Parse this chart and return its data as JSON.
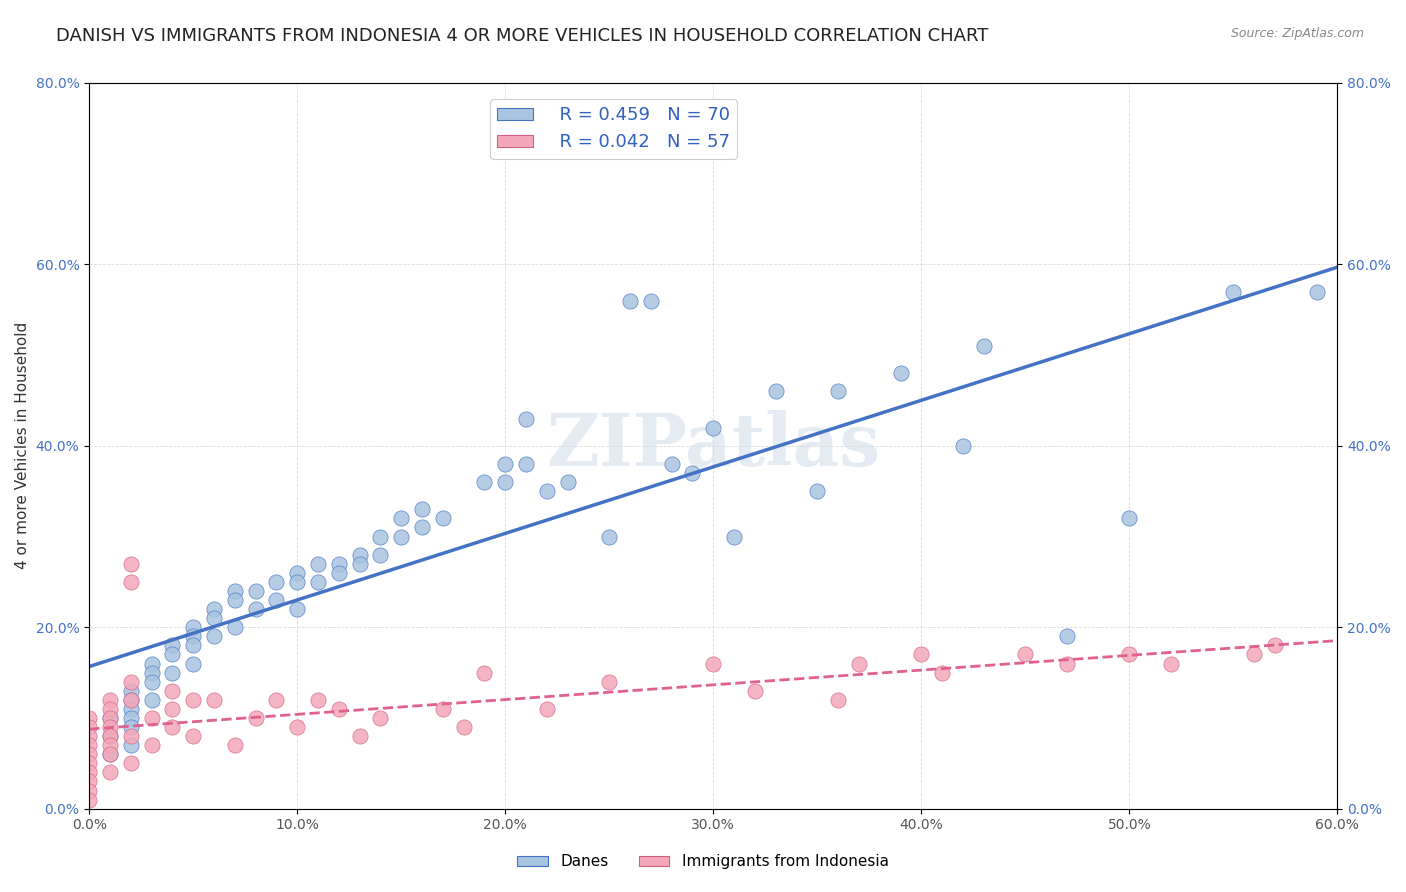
{
  "title": "DANISH VS IMMIGRANTS FROM INDONESIA 4 OR MORE VEHICLES IN HOUSEHOLD CORRELATION CHART",
  "source": "Source: ZipAtlas.com",
  "xlabel": "",
  "ylabel": "4 or more Vehicles in Household",
  "xlim": [
    0.0,
    0.6
  ],
  "ylim": [
    0.0,
    0.8
  ],
  "xticks": [
    0.0,
    0.1,
    0.2,
    0.3,
    0.4,
    0.5,
    0.6
  ],
  "yticks": [
    0.0,
    0.2,
    0.4,
    0.6,
    0.8
  ],
  "xticklabels": [
    "0.0%",
    "10.0%",
    "20.0%",
    "30.0%",
    "40.0%",
    "50.0%",
    "60.0%"
  ],
  "yticklabels": [
    "0.0%",
    "20.0%",
    "40.0%",
    "60.0%",
    "80.0%"
  ],
  "danes_R": 0.459,
  "danes_N": 70,
  "indonesia_R": 0.042,
  "indonesia_N": 57,
  "danes_color": "#a8c4e0",
  "indonesia_color": "#f4a7b9",
  "danes_line_color": "#4472c4",
  "indonesia_line_color": "#e06090",
  "legend_R_color": "#3060c0",
  "watermark": "ZIPatlas",
  "danes_x": [
    0.01,
    0.01,
    0.01,
    0.02,
    0.02,
    0.02,
    0.02,
    0.02,
    0.02,
    0.03,
    0.03,
    0.03,
    0.03,
    0.04,
    0.04,
    0.04,
    0.05,
    0.05,
    0.05,
    0.05,
    0.06,
    0.06,
    0.06,
    0.07,
    0.07,
    0.07,
    0.08,
    0.08,
    0.09,
    0.09,
    0.1,
    0.1,
    0.1,
    0.11,
    0.11,
    0.12,
    0.12,
    0.13,
    0.13,
    0.14,
    0.14,
    0.15,
    0.15,
    0.16,
    0.16,
    0.17,
    0.19,
    0.2,
    0.2,
    0.21,
    0.21,
    0.22,
    0.23,
    0.25,
    0.26,
    0.27,
    0.28,
    0.29,
    0.3,
    0.31,
    0.33,
    0.35,
    0.36,
    0.39,
    0.42,
    0.43,
    0.47,
    0.5,
    0.55,
    0.59
  ],
  "danes_y": [
    0.1,
    0.08,
    0.06,
    0.13,
    0.12,
    0.11,
    0.1,
    0.09,
    0.07,
    0.16,
    0.15,
    0.14,
    0.12,
    0.18,
    0.17,
    0.15,
    0.2,
    0.19,
    0.18,
    0.16,
    0.22,
    0.21,
    0.19,
    0.24,
    0.23,
    0.2,
    0.24,
    0.22,
    0.25,
    0.23,
    0.26,
    0.25,
    0.22,
    0.27,
    0.25,
    0.27,
    0.26,
    0.28,
    0.27,
    0.3,
    0.28,
    0.32,
    0.3,
    0.33,
    0.31,
    0.32,
    0.36,
    0.38,
    0.36,
    0.43,
    0.38,
    0.35,
    0.36,
    0.3,
    0.56,
    0.56,
    0.38,
    0.37,
    0.42,
    0.3,
    0.46,
    0.35,
    0.46,
    0.48,
    0.4,
    0.51,
    0.19,
    0.32,
    0.57,
    0.57
  ],
  "indonesia_x": [
    0.0,
    0.0,
    0.0,
    0.0,
    0.0,
    0.0,
    0.0,
    0.0,
    0.0,
    0.0,
    0.01,
    0.01,
    0.01,
    0.01,
    0.01,
    0.01,
    0.01,
    0.01,
    0.02,
    0.02,
    0.02,
    0.02,
    0.02,
    0.02,
    0.03,
    0.03,
    0.04,
    0.04,
    0.04,
    0.05,
    0.05,
    0.06,
    0.07,
    0.08,
    0.09,
    0.1,
    0.11,
    0.12,
    0.13,
    0.14,
    0.17,
    0.18,
    0.19,
    0.22,
    0.25,
    0.3,
    0.32,
    0.36,
    0.37,
    0.4,
    0.41,
    0.45,
    0.47,
    0.5,
    0.52,
    0.56,
    0.57
  ],
  "indonesia_y": [
    0.1,
    0.09,
    0.08,
    0.07,
    0.06,
    0.05,
    0.04,
    0.03,
    0.02,
    0.01,
    0.12,
    0.11,
    0.1,
    0.09,
    0.08,
    0.07,
    0.06,
    0.04,
    0.27,
    0.25,
    0.14,
    0.12,
    0.08,
    0.05,
    0.1,
    0.07,
    0.13,
    0.11,
    0.09,
    0.12,
    0.08,
    0.12,
    0.07,
    0.1,
    0.12,
    0.09,
    0.12,
    0.11,
    0.08,
    0.1,
    0.11,
    0.09,
    0.15,
    0.11,
    0.14,
    0.16,
    0.13,
    0.12,
    0.16,
    0.17,
    0.15,
    0.17,
    0.16,
    0.17,
    0.16,
    0.17,
    0.18
  ]
}
